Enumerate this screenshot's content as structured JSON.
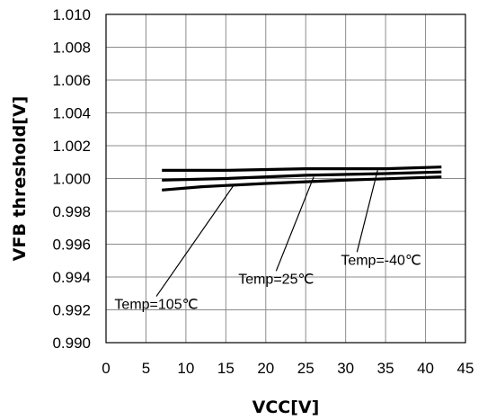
{
  "chart_data": {
    "type": "line",
    "xlabel": "VCC[V]",
    "ylabel": "VFB threshold[V]",
    "xlim": [
      0,
      45
    ],
    "ylim": [
      0.99,
      1.01
    ],
    "x_ticks": [
      "0",
      "5",
      "10",
      "15",
      "20",
      "25",
      "30",
      "35",
      "40",
      "45"
    ],
    "y_ticks": [
      "0.990",
      "0.992",
      "0.994",
      "0.996",
      "0.998",
      "1.000",
      "1.002",
      "1.004",
      "1.006",
      "1.008",
      "1.010"
    ],
    "grid": true,
    "line_color": "#000000",
    "series": [
      {
        "name": "Temp=-40℃",
        "x": [
          7,
          15,
          25,
          35,
          42
        ],
        "y": [
          1.0005,
          1.0005,
          1.0006,
          1.0006,
          1.0007
        ]
      },
      {
        "name": "Temp=25℃",
        "x": [
          7,
          15,
          25,
          35,
          42
        ],
        "y": [
          0.9999,
          1.0,
          1.0002,
          1.0003,
          1.0004
        ]
      },
      {
        "name": "Temp=105℃",
        "x": [
          7,
          12,
          20,
          30,
          42
        ],
        "y": [
          0.9993,
          0.9995,
          0.9997,
          0.9999,
          1.0001
        ]
      }
    ],
    "annotations": [
      {
        "text": "Temp=-40℃",
        "text_x": 29.4,
        "text_y": 0.99475,
        "target_x": 34,
        "target_y": 1.0005,
        "anchor": "start"
      },
      {
        "text": "Temp=25℃",
        "text_x": 21.3,
        "text_y": 0.9936,
        "target_x": 26,
        "target_y": 1.0001,
        "anchor": "middle"
      },
      {
        "text": "Temp=105℃",
        "text_x": 6.3,
        "text_y": 0.99205,
        "target_x": 16,
        "target_y": 0.9996,
        "anchor": "middle"
      }
    ]
  }
}
